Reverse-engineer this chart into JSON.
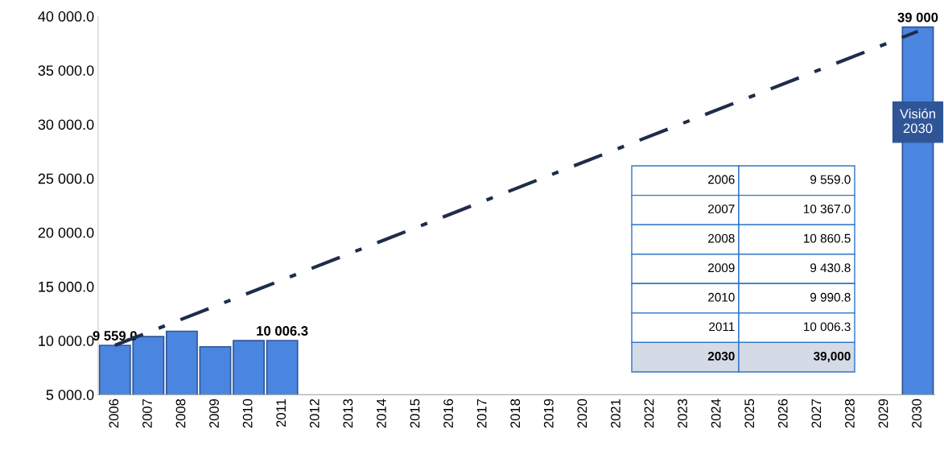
{
  "chart_data": {
    "type": "bar",
    "categories": [
      "2006",
      "2007",
      "2008",
      "2009",
      "2010",
      "2011",
      "2012",
      "2013",
      "2014",
      "2015",
      "2016",
      "2017",
      "2018",
      "2019",
      "2020",
      "2021",
      "2022",
      "2023",
      "2024",
      "2025",
      "2026",
      "2027",
      "2028",
      "2029",
      "2030"
    ],
    "series": [
      {
        "color": "#4a86e0",
        "values": [
          9559.0,
          10367.0,
          10860.5,
          9430.8,
          9990.8,
          10006.3,
          null,
          null,
          null,
          null,
          null,
          null,
          null,
          null,
          null,
          null,
          null,
          null,
          null,
          null,
          null,
          null,
          null,
          null,
          39000
        ],
        "value_labels": [
          "9 559.0",
          null,
          null,
          null,
          null,
          "10 006.3",
          null,
          null,
          null,
          null,
          null,
          null,
          null,
          null,
          null,
          null,
          null,
          null,
          null,
          null,
          null,
          null,
          null,
          null,
          "39 000"
        ]
      },
      {
        "type": "line",
        "color": "#1f2d4a",
        "values": [
          9559,
          null,
          null,
          null,
          null,
          null,
          null,
          null,
          null,
          null,
          null,
          null,
          null,
          null,
          null,
          null,
          null,
          null,
          null,
          null,
          null,
          null,
          null,
          null,
          38600
        ],
        "line_style": "dashed",
        "marker": "none"
      }
    ],
    "ylim": [
      5000,
      40000
    ],
    "yticks": [
      {
        "value": 5000,
        "label": "5 000.0"
      },
      {
        "value": 10000,
        "label": "10 000.0"
      },
      {
        "value": 15000,
        "label": "15 000.0"
      },
      {
        "value": 20000,
        "label": "20 000.0"
      },
      {
        "value": 25000,
        "label": "25 000.0"
      },
      {
        "value": 30000,
        "label": "30 000.0"
      },
      {
        "value": 35000,
        "label": "35 000.0"
      },
      {
        "value": 40000,
        "label": "40 000.0"
      }
    ],
    "grid": false,
    "annotations": [
      "Visión\n2030",
      "2006",
      "9 559.0",
      "2007",
      "10 367.0",
      "2008",
      "10 860.5",
      "2009",
      "9 430.8",
      "2010",
      "9 990.8",
      "2011",
      "10 006.3",
      "2030",
      "39,000"
    ]
  }
}
